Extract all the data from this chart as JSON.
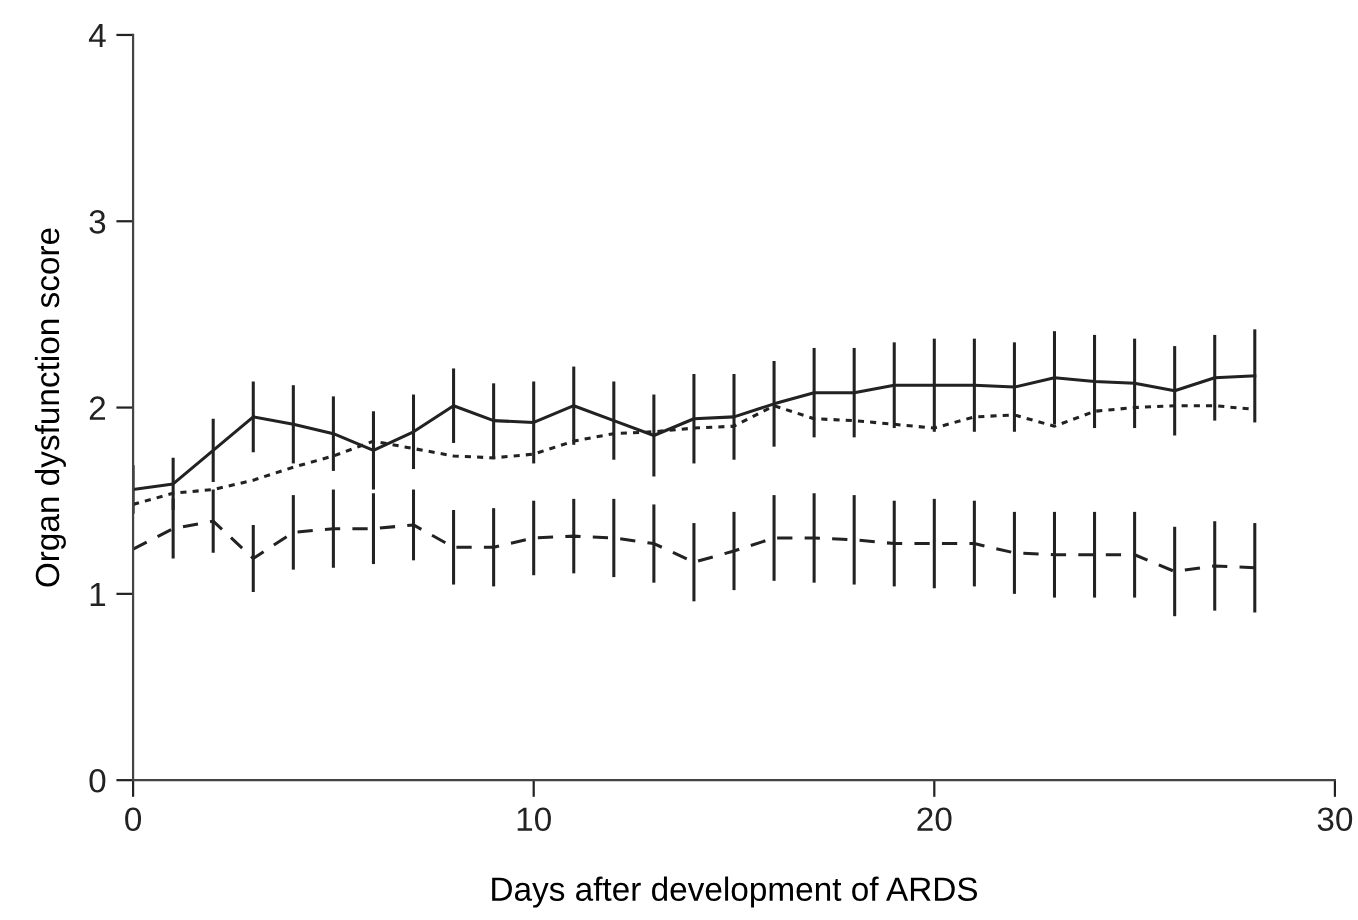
{
  "chart_data": {
    "type": "line",
    "xlabel": "Days after development of ARDS",
    "ylabel": "Organ dysfunction score",
    "x": [
      0,
      1,
      2,
      3,
      4,
      5,
      6,
      7,
      8,
      9,
      10,
      11,
      12,
      13,
      14,
      15,
      16,
      17,
      18,
      19,
      20,
      21,
      22,
      23,
      24,
      25,
      26,
      27,
      28
    ],
    "series": [
      {
        "color": "#222222",
        "line_style": "solid",
        "values": [
          1.56,
          1.59,
          1.77,
          1.95,
          1.91,
          1.86,
          1.77,
          1.87,
          2.01,
          1.93,
          1.92,
          2.01,
          1.93,
          1.85,
          1.94,
          1.95,
          2.02,
          2.08,
          2.08,
          2.12,
          2.12,
          2.12,
          2.11,
          2.16,
          2.14,
          2.13,
          2.09,
          2.16,
          2.17
        ],
        "errors": [
          0.13,
          0.14,
          0.17,
          0.19,
          0.21,
          0.2,
          0.21,
          0.2,
          0.2,
          0.2,
          0.22,
          0.21,
          0.21,
          0.22,
          0.24,
          0.23,
          0.23,
          0.24,
          0.24,
          0.23,
          0.25,
          0.25,
          0.24,
          0.25,
          0.25,
          0.24,
          0.24,
          0.23,
          0.25
        ]
      },
      {
        "color": "#222222",
        "line_style": "dotted",
        "values": [
          1.48,
          1.54,
          1.56,
          1.61,
          1.68,
          1.74,
          1.82,
          1.78,
          1.74,
          1.73,
          1.75,
          1.82,
          1.86,
          1.87,
          1.89,
          1.9,
          2.01,
          1.94,
          1.93,
          1.91,
          1.89,
          1.95,
          1.96,
          1.9,
          1.98,
          2.0,
          2.01,
          2.01,
          1.99
        ]
      },
      {
        "color": "#222222",
        "line_style": "dashed",
        "values": [
          1.24,
          1.35,
          1.39,
          1.19,
          1.33,
          1.35,
          1.35,
          1.37,
          1.25,
          1.25,
          1.3,
          1.31,
          1.3,
          1.27,
          1.17,
          1.23,
          1.3,
          1.3,
          1.29,
          1.27,
          1.27,
          1.27,
          1.22,
          1.21,
          1.21,
          1.21,
          1.12,
          1.15,
          1.14
        ],
        "errors": [
          null,
          0.16,
          0.17,
          0.18,
          0.2,
          0.21,
          0.19,
          0.19,
          0.2,
          0.21,
          0.2,
          0.2,
          0.21,
          0.21,
          0.21,
          0.21,
          0.23,
          0.24,
          0.24,
          0.23,
          0.24,
          0.23,
          0.22,
          0.23,
          0.23,
          0.23,
          0.24,
          0.24,
          0.24
        ]
      }
    ],
    "xlim": [
      0,
      30
    ],
    "xticks": [
      0,
      10,
      20,
      30
    ],
    "ylim": [
      0,
      4
    ],
    "yticks": [
      0,
      1,
      2,
      3,
      4
    ],
    "grid": false,
    "legend": false,
    "marker": "none"
  }
}
